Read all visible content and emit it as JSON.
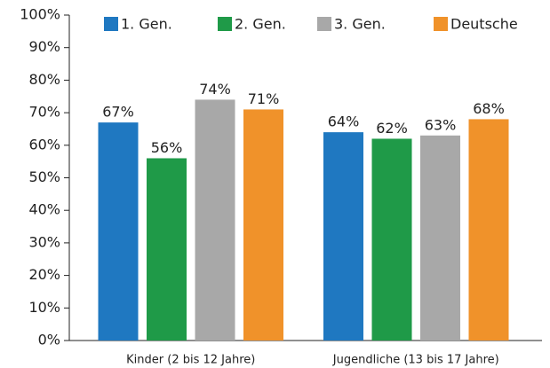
{
  "chart_data": {
    "type": "bar",
    "categories": [
      "Kinder (2 bis 12 Jahre)",
      "Jugendliche (13 bis 17 Jahre)"
    ],
    "series": [
      {
        "name": "1. Gen.",
        "color": "#1f78c1",
        "values": [
          67,
          64
        ],
        "value_labels": [
          "67%",
          "64%"
        ]
      },
      {
        "name": "2. Gen.",
        "color": "#1f9a48",
        "values": [
          56,
          62
        ],
        "value_labels": [
          "56%",
          "62%"
        ]
      },
      {
        "name": "3. Gen.",
        "color": "#a8a8a8",
        "values": [
          74,
          63
        ],
        "value_labels": [
          "74%",
          "63%"
        ]
      },
      {
        "name": "Deutsche",
        "color": "#f0922a",
        "values": [
          71,
          68
        ],
        "value_labels": [
          "71%",
          "68%"
        ]
      }
    ],
    "ylim": [
      0,
      100
    ],
    "yticks": [
      {
        "value": 0,
        "label": "0%"
      },
      {
        "value": 10,
        "label": "10%"
      },
      {
        "value": 20,
        "label": "20%"
      },
      {
        "value": 30,
        "label": "30%"
      },
      {
        "value": 40,
        "label": "40%"
      },
      {
        "value": 50,
        "label": "50%"
      },
      {
        "value": 60,
        "label": "60%"
      },
      {
        "value": 70,
        "label": "70%"
      },
      {
        "value": 80,
        "label": "80%"
      },
      {
        "value": 90,
        "label": "90%"
      },
      {
        "value": 100,
        "label": "100%"
      }
    ],
    "legend": "top",
    "grid": false
  }
}
